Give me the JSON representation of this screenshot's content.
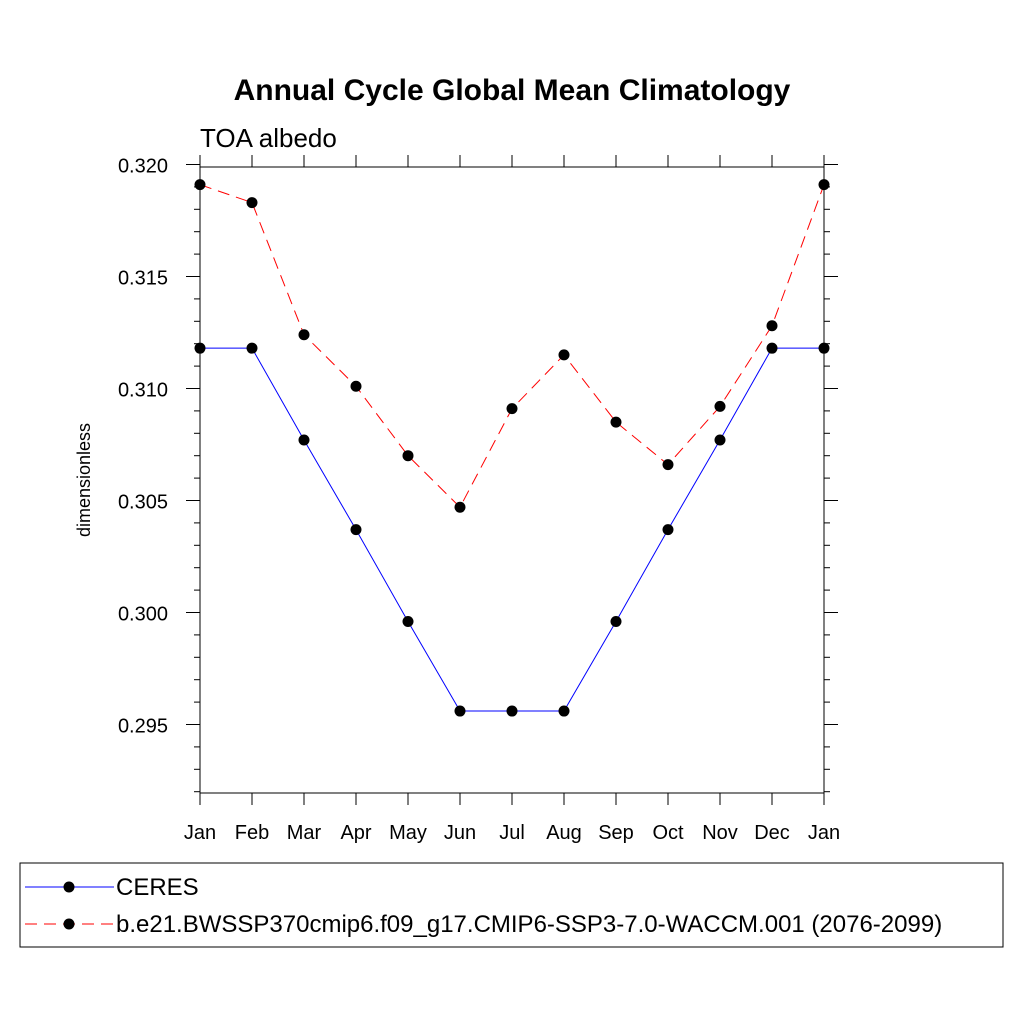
{
  "chart_data": {
    "type": "line",
    "title": "Annual Cycle Global Mean Climatology",
    "subtitle": "TOA albedo",
    "xlabel": "",
    "ylabel": "dimensionless",
    "categories": [
      "Jan",
      "Feb",
      "Mar",
      "Apr",
      "May",
      "Jun",
      "Jul",
      "Aug",
      "Sep",
      "Oct",
      "Nov",
      "Dec",
      "Jan"
    ],
    "ylim": [
      0.292,
      0.32
    ],
    "yticks": [
      0.295,
      0.3,
      0.305,
      0.31,
      0.315,
      0.32
    ],
    "ytick_labels": [
      "0.295",
      "0.300",
      "0.305",
      "0.310",
      "0.315",
      "0.320"
    ],
    "legend_position": "bottom",
    "series": [
      {
        "name": "CERES",
        "color": "#0000ff",
        "style": "solid",
        "values": [
          0.3118,
          0.3118,
          0.3077,
          0.3037,
          0.2996,
          0.2956,
          0.2956,
          0.2956,
          0.2996,
          0.3037,
          0.3077,
          0.3118,
          0.3118
        ]
      },
      {
        "name": "b.e21.BWSSP370cmip6.f09_g17.CMIP6-SSP3-7.0-WACCM.001 (2076-2099)",
        "color": "#ff0000",
        "style": "dashed",
        "values": [
          0.3191,
          0.3183,
          0.3124,
          0.3101,
          0.307,
          0.3047,
          0.3091,
          0.3115,
          0.3085,
          0.3066,
          0.3092,
          0.3128,
          0.3191
        ]
      }
    ]
  }
}
